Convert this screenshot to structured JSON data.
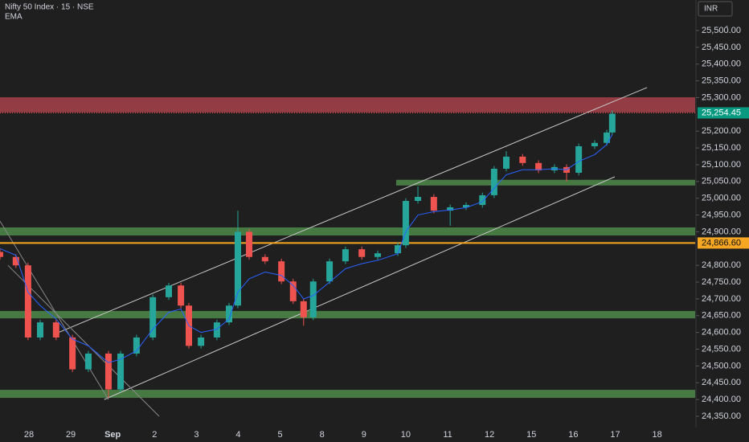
{
  "chart_data": {
    "type": "candlestick",
    "title": "Nifty 50 Index · 15 · NSE",
    "indicator": "EMA",
    "currency": "INR",
    "currency_sub": "-",
    "categories": [
      "28",
      "29",
      "Sep",
      "2",
      "3",
      "4",
      "5",
      "8",
      "9",
      "10",
      "11",
      "12",
      "15",
      "16",
      "17",
      "18"
    ],
    "xlim": [
      -0.69,
      15.91
    ],
    "ylim": [
      24316.5,
      25591
    ],
    "yticks": [
      {
        "value": 25500,
        "label": "25,500.00"
      },
      {
        "value": 25450,
        "label": "25,450.00"
      },
      {
        "value": 25400,
        "label": "25,400.00"
      },
      {
        "value": 25350,
        "label": "25,350.00"
      },
      {
        "value": 25300,
        "label": "25,300.00"
      },
      {
        "value": 25200,
        "label": "25,200.00"
      },
      {
        "value": 25150,
        "label": "25,150.00"
      },
      {
        "value": 25100,
        "label": "25,100.00"
      },
      {
        "value": 25050,
        "label": "25,050.00"
      },
      {
        "value": 25000,
        "label": "25,000.00"
      },
      {
        "value": 24950,
        "label": "24,950.00"
      },
      {
        "value": 24900,
        "label": "24,900.00"
      },
      {
        "value": 24800,
        "label": "24,800.00"
      },
      {
        "value": 24750,
        "label": "24,750.00"
      },
      {
        "value": 24700,
        "label": "24,700.00"
      },
      {
        "value": 24650,
        "label": "24,650.00"
      },
      {
        "value": 24600,
        "label": "24,600.00"
      },
      {
        "value": 24550,
        "label": "24,550.00"
      },
      {
        "value": 24500,
        "label": "24,500.00"
      },
      {
        "value": 24450,
        "label": "24,450.00"
      },
      {
        "value": 24400,
        "label": "24,400.00"
      },
      {
        "value": 24350,
        "label": "24,350.00"
      }
    ],
    "up_color": "#26a69a",
    "down_color": "#ef5350",
    "ema_color": "#2962ff",
    "x": [
      -0.69,
      -0.31,
      -0.02,
      0.27,
      0.65,
      1.04,
      1.42,
      1.9,
      2.19,
      2.57,
      2.96,
      3.34,
      3.63,
      3.82,
      4.11,
      4.49,
      4.78,
      4.99,
      5.26,
      5.64,
      6.03,
      6.31,
      6.56,
      6.79,
      7.18,
      7.56,
      7.95,
      8.33,
      8.81,
      9.0,
      9.29,
      9.67,
      10.06,
      10.44,
      10.83,
      11.11,
      11.4,
      11.79,
      12.17,
      12.55,
      12.84,
      13.13,
      13.51,
      13.8,
      13.93
    ],
    "open": [
      24840,
      24825,
      24800,
      24585,
      24630,
      24585,
      24490,
      24537,
      24430,
      24537,
      24585,
      24705,
      24740,
      24680,
      24560,
      24585,
      24630,
      24680,
      24900,
      24825,
      24812,
      24752,
      24693,
      24645,
      24752,
      24812,
      24848,
      24825,
      24836,
      24860,
      24992,
      25004,
      24963,
      24973,
      24980,
      25009,
      25088,
      25124,
      25105,
      25083,
      25093,
      25076,
      25155,
      25165,
      25196
    ],
    "high": [
      24848,
      24833,
      24808,
      24638,
      24638,
      24593,
      24545,
      24545,
      24545,
      24593,
      24713,
      24748,
      24748,
      24688,
      24593,
      24638,
      24688,
      24963,
      24908,
      24833,
      24820,
      24760,
      24701,
      24760,
      24820,
      24856,
      24856,
      24844,
      24868,
      25000,
      25035,
      25012,
      24981,
      24988,
      25017,
      25096,
      25140,
      25132,
      25113,
      25101,
      25101,
      25163,
      25173,
      25204,
      25262
    ],
    "low": [
      24817,
      24792,
      24577,
      24577,
      24577,
      24482,
      24482,
      24405,
      24422,
      24529,
      24577,
      24697,
      24672,
      24552,
      24552,
      24577,
      24622,
      24672,
      24817,
      24804,
      24744,
      24685,
      24620,
      24637,
      24744,
      24804,
      24817,
      24817,
      24828,
      24852,
      24984,
      24955,
      24918,
      24965,
      24972,
      25001,
      25080,
      25097,
      25075,
      25075,
      25050,
      25068,
      25147,
      25157,
      25188
    ],
    "close": [
      24825,
      24800,
      24585,
      24630,
      24585,
      24490,
      24537,
      24430,
      24537,
      24585,
      24705,
      24740,
      24680,
      24560,
      24585,
      24630,
      24680,
      24900,
      24825,
      24812,
      24752,
      24693,
      24645,
      24752,
      24812,
      24848,
      24825,
      24836,
      24860,
      24992,
      25004,
      24963,
      24973,
      24980,
      25009,
      25088,
      25124,
      25105,
      25083,
      25093,
      25076,
      25155,
      25165,
      25196,
      25252
    ],
    "ema": [
      24850,
      24830,
      24720,
      24680,
      24640,
      24580,
      24560,
      24510,
      24520,
      24545,
      24610,
      24660,
      24670,
      24620,
      24600,
      24610,
      24640,
      24720,
      24760,
      24780,
      24770,
      24740,
      24700,
      24710,
      24750,
      24790,
      24805,
      24815,
      24835,
      24900,
      24950,
      24960,
      24965,
      24972,
      24990,
      25030,
      25070,
      25085,
      25085,
      25088,
      25085,
      25110,
      25130,
      25160,
      25190
    ],
    "zones": [
      {
        "low": 25256,
        "high": 25301,
        "color": "#a8424a"
      },
      {
        "low": 25038,
        "high": 25055,
        "from": 8.77,
        "color": "#4f8a4a"
      },
      {
        "low": 24889,
        "high": 24913,
        "color": "#4f8a4a"
      },
      {
        "low": 24642,
        "high": 24664,
        "color": "#4f8a4a"
      },
      {
        "low": 24405,
        "high": 24429,
        "color": "#4f8a4a"
      }
    ],
    "trendlines": [
      {
        "points": [
          [
            0.65,
            24597
          ],
          [
            14.76,
            25330
          ]
        ],
        "color": "#c8c8c8"
      },
      {
        "points": [
          [
            1.8,
            24400
          ],
          [
            13.99,
            25064
          ]
        ],
        "color": "#c8c8c8"
      },
      {
        "points": [
          [
            -0.69,
            24932
          ],
          [
            1.9,
            24400
          ]
        ],
        "color": "#8a8a8a"
      },
      {
        "points": [
          [
            -0.5,
            24800
          ],
          [
            3.11,
            24350
          ]
        ],
        "color": "#8a8a8a"
      }
    ],
    "level": {
      "value": 24866.6,
      "label": "24,866.60",
      "color": "#f5a623"
    },
    "last_price": {
      "value": 25254.45,
      "label": "25,254.45",
      "color": "#089981"
    }
  }
}
